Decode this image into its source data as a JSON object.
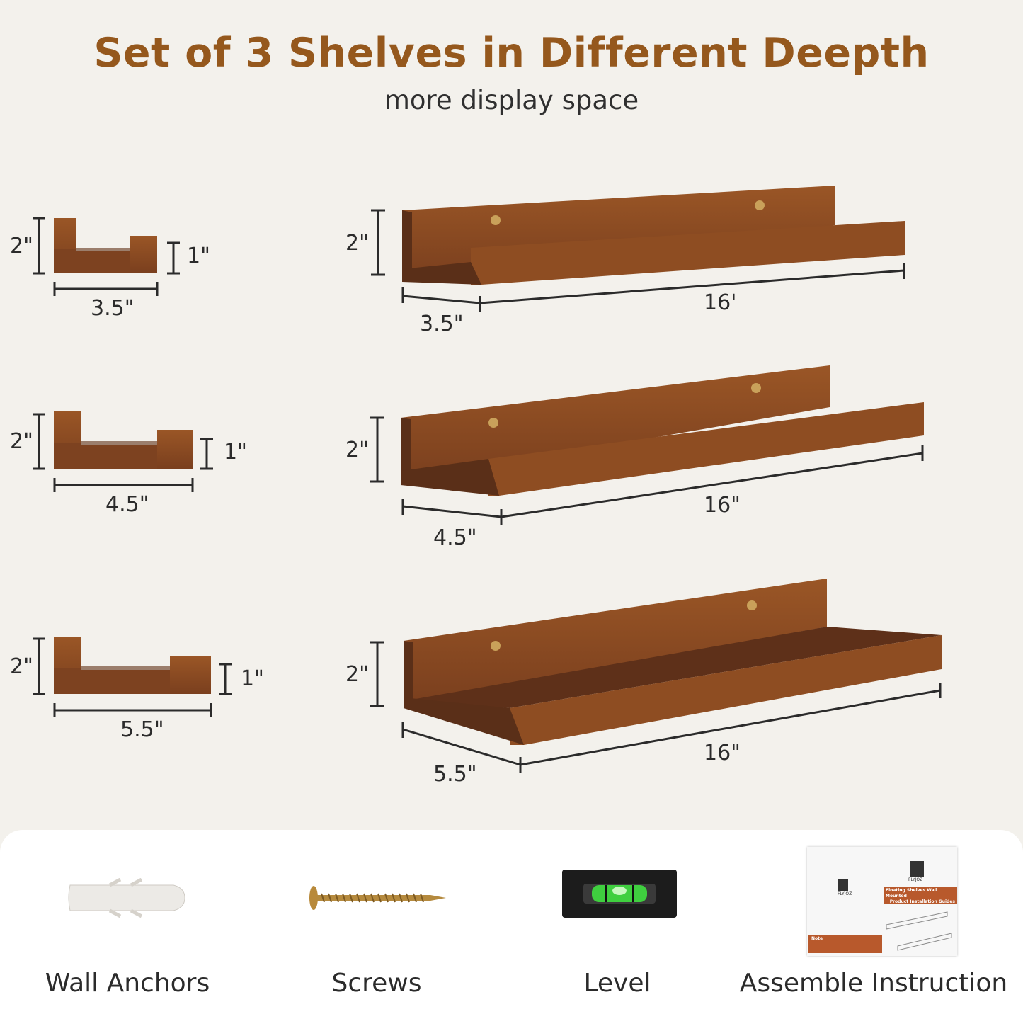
{
  "header": {
    "title": "Set of 3 Shelves in Different Deepth",
    "subtitle": "more display space"
  },
  "colors": {
    "title": "#95581d",
    "wood": "#8a4a22",
    "wood_dark": "#5a2f18",
    "background": "#f3f1ec",
    "panel": "#ffffff"
  },
  "shelves": [
    {
      "side_height": "2\"",
      "lip_height": "1\"",
      "depth": "3.5\"",
      "height": "2\"",
      "length": "16'",
      "depth_3d": "3.5\""
    },
    {
      "side_height": "2\"",
      "lip_height": "1\"",
      "depth": "4.5\"",
      "height": "2\"",
      "length": "16\"",
      "depth_3d": "4.5\""
    },
    {
      "side_height": "2\"",
      "lip_height": "1\"",
      "depth": "5.5\"",
      "height": "2\"",
      "length": "16\"",
      "depth_3d": "5.5\""
    }
  ],
  "accessories": [
    {
      "label": "Wall Anchors",
      "icon": "wall-anchor-icon"
    },
    {
      "label": "Screws",
      "icon": "screw-icon"
    },
    {
      "label": "Level",
      "icon": "level-icon"
    },
    {
      "label": "Assemble Instruction",
      "icon": "instruction-booklet-icon"
    }
  ],
  "booklet": {
    "brand": "FLYJOZ",
    "title_line1": "Floating Shelves Wall Mounted",
    "title_line2": "Product Installation Guides",
    "note": "Note"
  }
}
